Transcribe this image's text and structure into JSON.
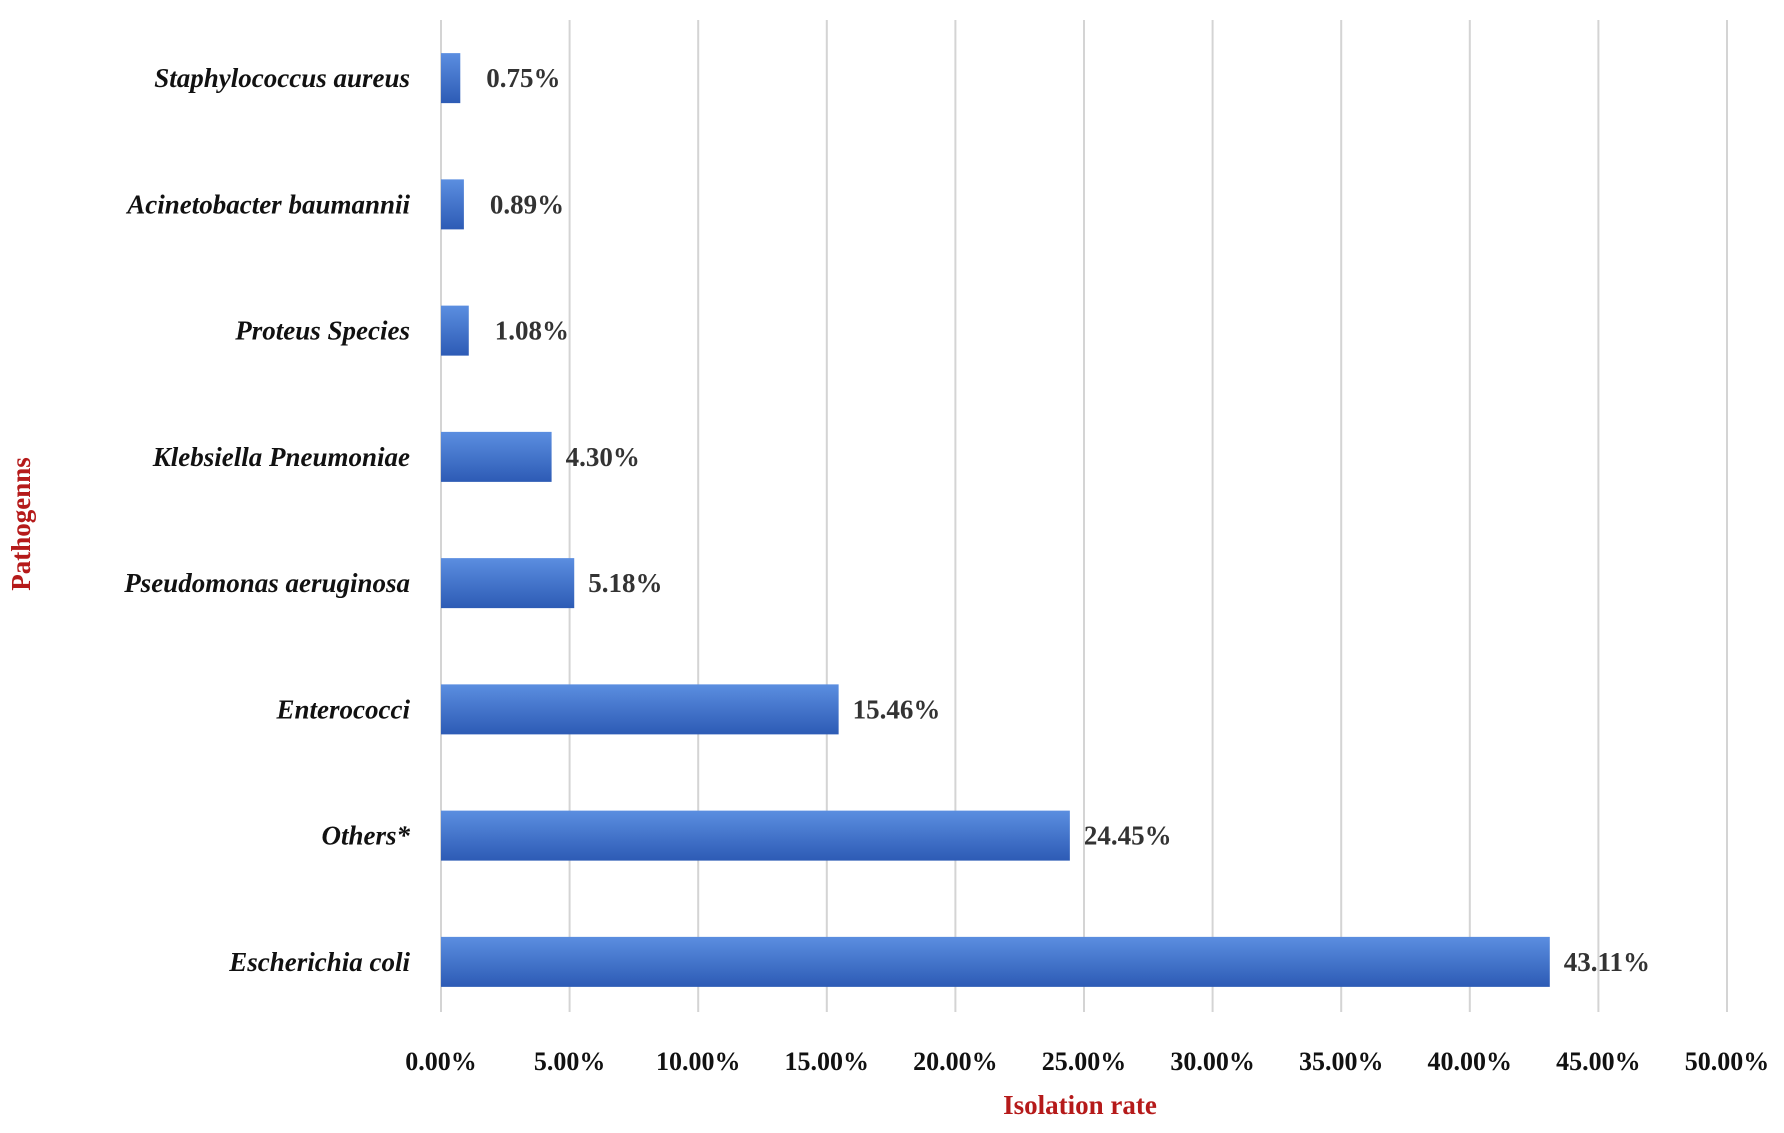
{
  "chart_data": {
    "type": "bar",
    "orientation": "horizontal",
    "categories": [
      "Escherichia coli",
      "Others*",
      "Enterococci",
      "Pseudomonas aeruginosa",
      "Klebsiella Pneumoniae",
      "Proteus Species",
      "Acinetobacter baumannii",
      "Staphylococcus aureus"
    ],
    "values": [
      43.11,
      24.45,
      15.46,
      5.18,
      4.3,
      1.08,
      0.89,
      0.75
    ],
    "value_labels": [
      "43.11%",
      "24.45%",
      "15.46%",
      "5.18%",
      "4.30%",
      "1.08%",
      "0.89%",
      "0.75%"
    ],
    "xlabel": "Isolation rate",
    "ylabel": "Pathogenns",
    "xlim": [
      0,
      50
    ],
    "x_ticks": [
      0,
      5,
      10,
      15,
      20,
      25,
      30,
      35,
      40,
      45,
      50
    ],
    "x_tick_labels": [
      "0.00%",
      "5.00%",
      "10.00%",
      "15.00%",
      "20.00%",
      "25.00%",
      "30.00%",
      "35.00%",
      "40.00%",
      "45.00%",
      "50.00%"
    ],
    "grid": "vertical",
    "legend": "none",
    "colors": {
      "bar_top": "#5b8ee0",
      "bar_bottom": "#2d5bb5",
      "axis_title": "#b51a1a",
      "gridline": "#d4d4d4"
    }
  }
}
